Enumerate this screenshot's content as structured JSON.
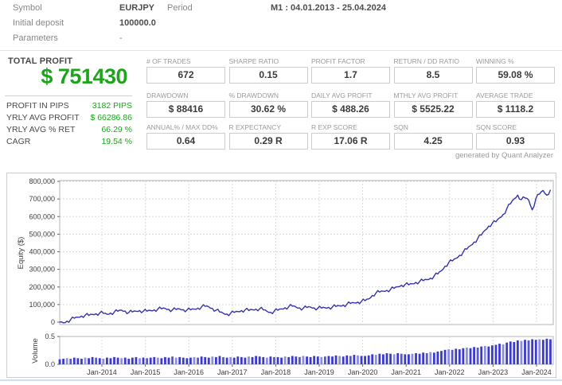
{
  "header": {
    "rows": [
      {
        "label": "Symbol",
        "value": "EURJPY",
        "label2": "Period",
        "value2": "M1 : 04.01.2013 - 25.04.2024"
      },
      {
        "label": "Initial deposit",
        "value": "100000.0"
      },
      {
        "label": "Parameters",
        "value": "-"
      }
    ]
  },
  "summary": {
    "title": "TOTAL PROFIT",
    "total_profit": "$ 751430",
    "rows": [
      {
        "label": "PROFIT IN PIPS",
        "value": "3182 PIPS"
      },
      {
        "label": "YRLY AVG PROFIT",
        "value": "$ 66286.86"
      },
      {
        "label": "YRLY AVG % RET",
        "value": "66.29 %"
      },
      {
        "label": "CAGR",
        "value": "19.54 %"
      }
    ]
  },
  "stats": {
    "rows": [
      [
        {
          "label": "# OF TRADES",
          "value": "672"
        },
        {
          "label": "SHARPE RATIO",
          "value": "0.15"
        },
        {
          "label": "PROFIT FACTOR",
          "value": "1.7"
        },
        {
          "label": "RETURN / DD RATIO",
          "value": "8.5"
        },
        {
          "label": "WINNING %",
          "value": "59.08 %"
        }
      ],
      [
        {
          "label": "DRAWDOWN",
          "value": "$ 88416"
        },
        {
          "label": "% DRAWDOWN",
          "value": "30.62 %"
        },
        {
          "label": "DAILY AVG PROFIT",
          "value": "$ 488.26"
        },
        {
          "label": "MTHLY AVG PROFIT",
          "value": "$ 5525.22"
        },
        {
          "label": "AVERAGE TRADE",
          "value": "$ 1118.2"
        }
      ],
      [
        {
          "label": "ANNUAL% / MAX DD%",
          "value": "0.64"
        },
        {
          "label": "R EXPECTANCY",
          "value": "0.29 R"
        },
        {
          "label": "R EXP SCORE",
          "value": "17.06 R"
        },
        {
          "label": "SQN",
          "value": "4.25"
        },
        {
          "label": "SQN SCORE",
          "value": "0.93"
        }
      ]
    ],
    "footer": "generated by Quant Analyzer"
  },
  "colors": {
    "profit_green": "#1ca41c",
    "equity_line": "#3333aa",
    "volume_bar": "#3a3acc",
    "volume_bar_mid": "#5656d6",
    "volume_bar_light": "#8c8ce0",
    "grid": "#d9d9d9",
    "axis_border": "#b3b3bb",
    "axis_text": "#3c3c3c"
  },
  "chart_data": [
    {
      "type": "line",
      "title": "",
      "xlabel": "",
      "ylabel": "Equity ($)",
      "ylim": [
        0,
        800000
      ],
      "grid": true,
      "legend": "none",
      "x_range": [
        2013.03,
        2024.32
      ],
      "x_step": "monthly",
      "yticks": [
        {
          "v": 800000,
          "label": "800,000"
        },
        {
          "v": 700000,
          "label": "700,000"
        },
        {
          "v": 600000,
          "label": "600,000"
        },
        {
          "v": 500000,
          "label": "500,000"
        },
        {
          "v": 400000,
          "label": "400,000"
        },
        {
          "v": 300000,
          "label": "300,000"
        },
        {
          "v": 200000,
          "label": "200,000"
        },
        {
          "v": 100000,
          "label": "100,000"
        },
        {
          "v": 0,
          "label": "0"
        }
      ],
      "xticks": [
        {
          "x": 2014,
          "label": "Jan-2014"
        },
        {
          "x": 2015,
          "label": "Jan-2015"
        },
        {
          "x": 2016,
          "label": "Jan-2016"
        },
        {
          "x": 2017,
          "label": "Jan-2017"
        },
        {
          "x": 2018,
          "label": "Jan-2018"
        },
        {
          "x": 2019,
          "label": "Jan-2019"
        },
        {
          "x": 2020,
          "label": "Jan-2020"
        },
        {
          "x": 2021,
          "label": "Jan-2021"
        },
        {
          "x": 2022,
          "label": "Jan-2022"
        },
        {
          "x": 2023,
          "label": "Jan-2023"
        },
        {
          "x": 2024,
          "label": "Jan-2024"
        }
      ],
      "series": [
        {
          "name": "Equity",
          "values": [
            0,
            -4000,
            6000,
            14000,
            22000,
            28000,
            35000,
            40000,
            38000,
            44000,
            48000,
            52000,
            50000,
            45000,
            52000,
            57000,
            62000,
            68000,
            63000,
            55000,
            58000,
            62000,
            66000,
            63000,
            62000,
            66000,
            70000,
            74000,
            76000,
            78000,
            73000,
            69000,
            72000,
            75000,
            71000,
            69000,
            70000,
            74000,
            80000,
            86000,
            90000,
            87000,
            78000,
            68000,
            58000,
            50000,
            46000,
            50000,
            55000,
            60000,
            66000,
            70000,
            66000,
            71000,
            74000,
            76000,
            70000,
            62000,
            56000,
            62000,
            68000,
            75000,
            82000,
            88000,
            91000,
            86000,
            81000,
            79000,
            83000,
            86000,
            81000,
            79000,
            80000,
            82000,
            84000,
            86000,
            89000,
            93000,
            97000,
            102000,
            106000,
            110000,
            114000,
            118000,
            122000,
            132000,
            152000,
            166000,
            171000,
            176000,
            181000,
            186000,
            192000,
            201000,
            210000,
            214000,
            212000,
            218000,
            226000,
            231000,
            236000,
            242000,
            250000,
            262000,
            274000,
            292000,
            318000,
            338000,
            348000,
            362000,
            380000,
            398000,
            415000,
            435000,
            455000,
            475000,
            495000,
            522000,
            546000,
            562000,
            570000,
            592000,
            612000,
            645000,
            672000,
            700000,
            722000,
            696000,
            706000,
            694000,
            638000,
            702000,
            728000,
            748000,
            722000,
            752000
          ]
        }
      ]
    },
    {
      "type": "bar",
      "title": "",
      "xlabel": "",
      "ylabel": "Volume",
      "ylim": [
        0,
        0.5
      ],
      "x_range": [
        2013.03,
        2024.32
      ],
      "x_step": "monthly",
      "yticks": [
        {
          "v": 0.5,
          "label": "0.5"
        },
        {
          "v": 0,
          "label": "0.0"
        }
      ],
      "values": [
        0.09,
        0.1,
        0.11,
        0.1,
        0.12,
        0.11,
        0.1,
        0.12,
        0.11,
        0.13,
        0.12,
        0.11,
        0.1,
        0.12,
        0.11,
        0.13,
        0.12,
        0.11,
        0.12,
        0.1,
        0.12,
        0.13,
        0.11,
        0.12,
        0.11,
        0.12,
        0.13,
        0.12,
        0.11,
        0.13,
        0.12,
        0.14,
        0.12,
        0.13,
        0.12,
        0.11,
        0.12,
        0.13,
        0.12,
        0.14,
        0.13,
        0.12,
        0.14,
        0.13,
        0.15,
        0.13,
        0.12,
        0.13,
        0.12,
        0.14,
        0.13,
        0.12,
        0.14,
        0.13,
        0.15,
        0.14,
        0.13,
        0.12,
        0.14,
        0.13,
        0.13,
        0.12,
        0.14,
        0.13,
        0.15,
        0.14,
        0.13,
        0.15,
        0.14,
        0.13,
        0.15,
        0.14,
        0.13,
        0.14,
        0.15,
        0.14,
        0.16,
        0.15,
        0.14,
        0.16,
        0.15,
        0.17,
        0.16,
        0.15,
        0.15,
        0.16,
        0.18,
        0.17,
        0.19,
        0.18,
        0.2,
        0.19,
        0.18,
        0.2,
        0.19,
        0.18,
        0.18,
        0.19,
        0.2,
        0.19,
        0.21,
        0.2,
        0.22,
        0.21,
        0.23,
        0.24,
        0.26,
        0.27,
        0.26,
        0.28,
        0.27,
        0.29,
        0.3,
        0.29,
        0.31,
        0.3,
        0.32,
        0.33,
        0.32,
        0.34,
        0.35,
        0.37,
        0.36,
        0.39,
        0.41,
        0.4,
        0.43,
        0.42,
        0.44,
        0.43,
        0.45,
        0.44,
        0.45,
        0.44,
        0.46,
        0.45
      ]
    }
  ]
}
